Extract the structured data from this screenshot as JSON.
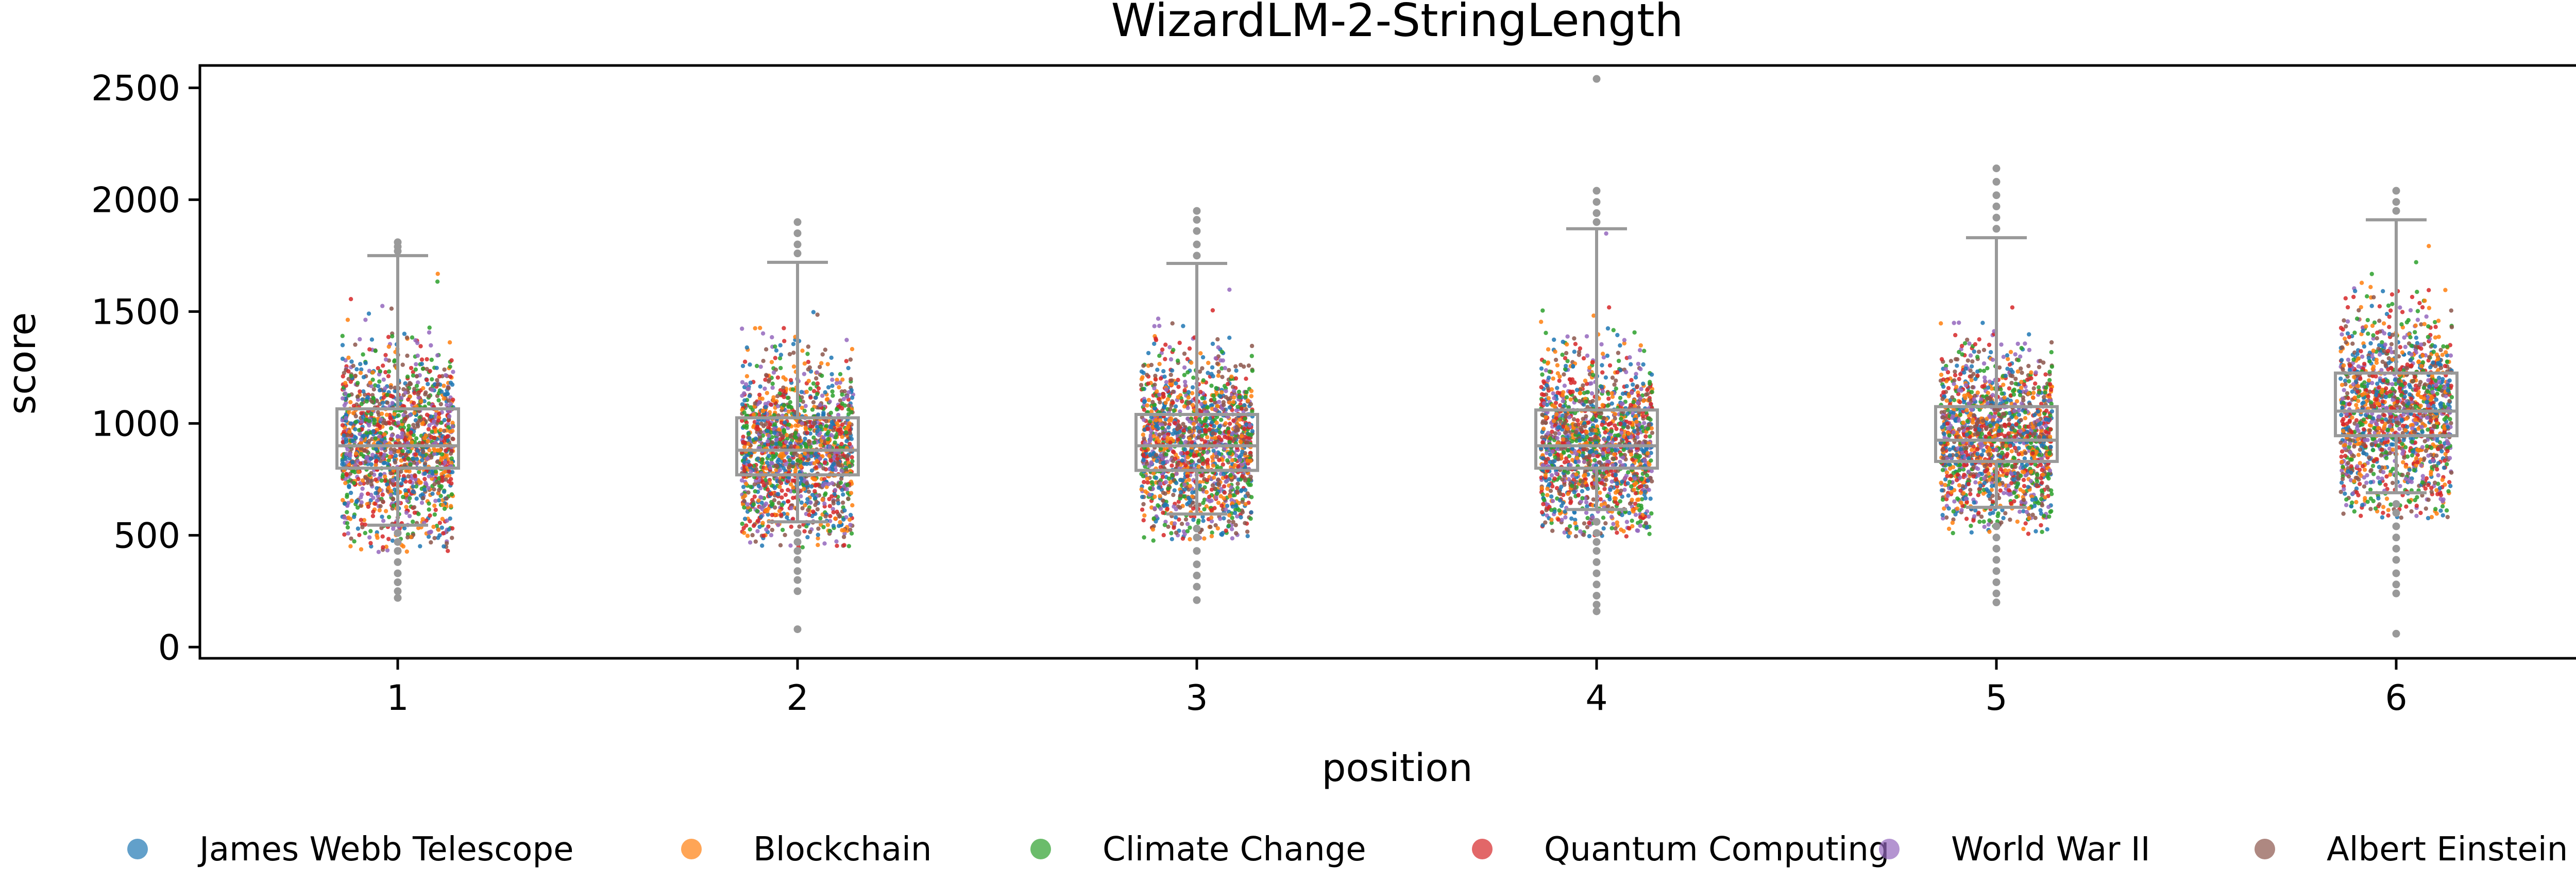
{
  "chart_data": {
    "type": "box",
    "title": "WizardLM-2-StringLength",
    "xlabel": "position",
    "ylabel": "score",
    "categories": [
      "1",
      "2",
      "3",
      "4",
      "5",
      "6"
    ],
    "ylim": [
      -50,
      2600
    ],
    "yticks": [
      0,
      500,
      1000,
      1500,
      2000,
      2500
    ],
    "grid": false,
    "legend_position": "bottom",
    "box_color": "#999999",
    "boxes": [
      {
        "position": "1",
        "q1": 800,
        "median": 900,
        "q3": 1065,
        "whisker_low": 545,
        "whisker_high": 1750,
        "outliers": [
          220,
          250,
          290,
          330,
          380,
          430,
          470,
          510,
          1770,
          1790,
          1810
        ]
      },
      {
        "position": "2",
        "q1": 770,
        "median": 880,
        "q3": 1025,
        "whisker_low": 560,
        "whisker_high": 1720,
        "outliers": [
          80,
          250,
          300,
          340,
          390,
          430,
          470,
          510,
          1760,
          1800,
          1850,
          1900
        ]
      },
      {
        "position": "3",
        "q1": 790,
        "median": 900,
        "q3": 1040,
        "whisker_low": 595,
        "whisker_high": 1715,
        "outliers": [
          210,
          270,
          320,
          370,
          430,
          490,
          530,
          1750,
          1800,
          1860,
          1910,
          1950
        ]
      },
      {
        "position": "4",
        "q1": 800,
        "median": 900,
        "q3": 1060,
        "whisker_low": 615,
        "whisker_high": 1870,
        "outliers": [
          160,
          190,
          230,
          280,
          330,
          380,
          430,
          470,
          510,
          560,
          1900,
          1940,
          1990,
          2040,
          2540
        ]
      },
      {
        "position": "5",
        "q1": 830,
        "median": 925,
        "q3": 1075,
        "whisker_low": 625,
        "whisker_high": 1830,
        "outliers": [
          200,
          240,
          290,
          340,
          390,
          440,
          490,
          540,
          1870,
          1920,
          1970,
          2020,
          2080,
          2140
        ]
      },
      {
        "position": "6",
        "q1": 945,
        "median": 1055,
        "q3": 1225,
        "whisker_low": 690,
        "whisker_high": 1910,
        "outliers": [
          60,
          240,
          280,
          330,
          390,
          440,
          490,
          540,
          600,
          640,
          1950,
          1990,
          2040
        ]
      }
    ],
    "series": [
      {
        "name": "James Webb Telescope",
        "color": "#1f77b4"
      },
      {
        "name": "Blockchain",
        "color": "#ff7f0e"
      },
      {
        "name": "Climate Change",
        "color": "#2ca02c"
      },
      {
        "name": "Quantum Computing",
        "color": "#d62728"
      },
      {
        "name": "World War II",
        "color": "#9467bd"
      },
      {
        "name": "Albert Einstein",
        "color": "#8c564b"
      }
    ]
  }
}
